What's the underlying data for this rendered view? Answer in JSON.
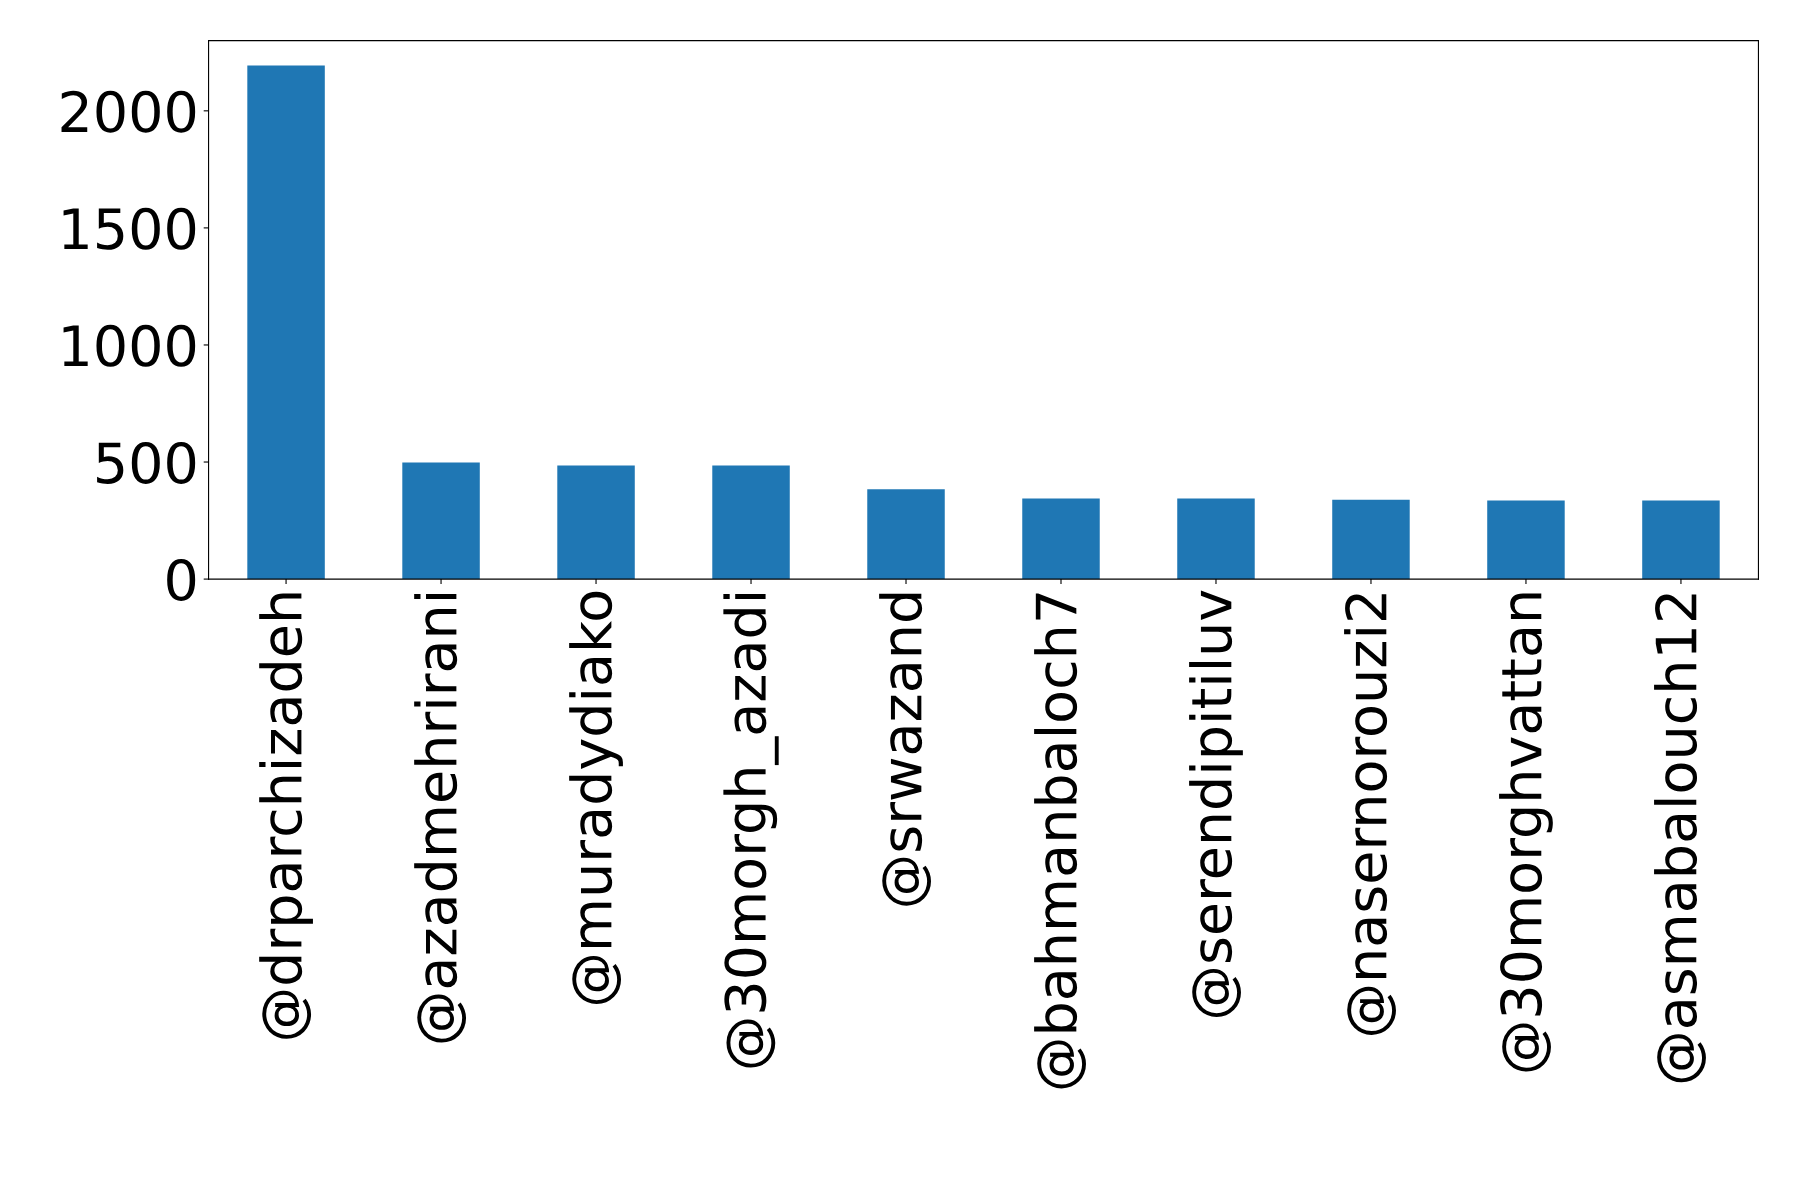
{
  "chart_data": {
    "type": "bar",
    "categories": [
      "@drparchizadeh",
      "@azadmehrirani",
      "@muradydiako",
      "@30morgh_azadi",
      "@srwazand",
      "@bahmanbaloch7",
      "@serendipitiluv",
      "@nasernorouzi2",
      "@30morghvattan",
      "@asmabalouch12"
    ],
    "values": [
      2194,
      498,
      485,
      485,
      384,
      344,
      344,
      339,
      336,
      336
    ],
    "color": "#1f77b4",
    "ylim": [
      0,
      2300
    ],
    "yticks": [
      0,
      500,
      1000,
      1500,
      2000
    ],
    "grid": false,
    "legend": false
  }
}
